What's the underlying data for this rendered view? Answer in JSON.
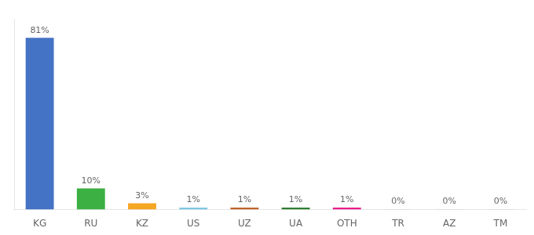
{
  "chart_data": {
    "type": "bar",
    "categories": [
      "KG",
      "RU",
      "KZ",
      "US",
      "UZ",
      "UA",
      "OTH",
      "TR",
      "AZ",
      "TM"
    ],
    "values": [
      81,
      10,
      3,
      1,
      1,
      1,
      1,
      0.2,
      0.2,
      0.2
    ],
    "value_labels": [
      "81%",
      "10%",
      "3%",
      "1%",
      "1%",
      "1%",
      "1%",
      "0%",
      "0%",
      "0%"
    ],
    "colors": [
      "#4472c4",
      "#3cb043",
      "#f5a623",
      "#7ec8e3",
      "#c0622b",
      "#2e7d32",
      "#e91e8c",
      "#cccccc",
      "#cccccc",
      "#cccccc"
    ],
    "ylim": [
      0,
      90
    ],
    "grid": false,
    "data_labels": true,
    "tick_labels": "x"
  }
}
